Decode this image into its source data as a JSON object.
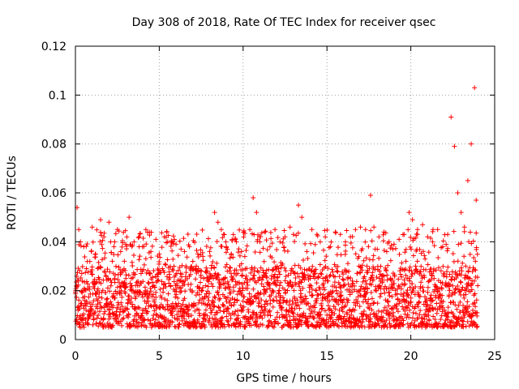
{
  "chart_data": {
    "type": "scatter",
    "title": "Day 308 of 2018, Rate Of TEC Index for receiver qsec",
    "xlabel": "GPS time / hours",
    "ylabel": "ROTI / TECUs",
    "xlim": [
      0,
      25
    ],
    "ylim": [
      0,
      0.12
    ],
    "xticks": [
      0,
      5,
      10,
      15,
      20,
      25
    ],
    "xtick_labels": [
      "0",
      "5",
      "10",
      "15",
      "20",
      "25"
    ],
    "yticks": [
      0,
      0.02,
      0.04,
      0.06,
      0.08,
      0.1,
      0.12
    ],
    "ytick_labels": [
      "0",
      "0.02",
      "0.04",
      "0.06",
      "0.08",
      "0.1",
      "0.12"
    ],
    "grid": true,
    "marker": "+",
    "color": "#ff0000",
    "series": [
      {
        "name": "ROTI",
        "x_range": [
          0,
          24
        ],
        "typical_range": [
          0.005,
          0.03
        ],
        "x": [
          0.1,
          0.2,
          0.3,
          0.5,
          1.0,
          1.2,
          1.5,
          1.7,
          2.0,
          2.1,
          2.3,
          2.5,
          2.7,
          3.0,
          3.2,
          3.5,
          3.8,
          4.0,
          4.2,
          4.5,
          4.8,
          5.0,
          5.3,
          5.5,
          5.8,
          6.0,
          6.3,
          6.5,
          6.8,
          7.0,
          7.3,
          7.6,
          8.0,
          8.3,
          8.5,
          8.7,
          9.0,
          9.3,
          9.6,
          9.9,
          10.1,
          10.4,
          10.6,
          10.8,
          11.0,
          11.3,
          11.6,
          11.9,
          12.2,
          12.5,
          12.8,
          13.0,
          13.3,
          13.5,
          13.8,
          14.1,
          14.4,
          14.6,
          14.9,
          15.2,
          15.5,
          15.8,
          16.1,
          16.4,
          16.7,
          17.0,
          17.3,
          17.6,
          17.8,
          18.1,
          18.4,
          18.7,
          19.0,
          19.3,
          19.6,
          19.9,
          20.1,
          20.4,
          20.7,
          21.0,
          21.3,
          21.6,
          21.9,
          22.2,
          22.4,
          22.6,
          22.8,
          23.0,
          23.2,
          23.4,
          23.6,
          23.8,
          23.9
        ],
        "y": [
          0.054,
          0.045,
          0.04,
          0.038,
          0.046,
          0.035,
          0.049,
          0.042,
          0.048,
          0.04,
          0.038,
          0.045,
          0.036,
          0.039,
          0.05,
          0.04,
          0.042,
          0.038,
          0.045,
          0.036,
          0.041,
          0.035,
          0.042,
          0.04,
          0.04,
          0.039,
          0.037,
          0.036,
          0.038,
          0.032,
          0.035,
          0.034,
          0.036,
          0.052,
          0.048,
          0.045,
          0.038,
          0.035,
          0.04,
          0.036,
          0.034,
          0.045,
          0.058,
          0.052,
          0.04,
          0.044,
          0.038,
          0.045,
          0.04,
          0.042,
          0.046,
          0.043,
          0.055,
          0.05,
          0.036,
          0.045,
          0.043,
          0.04,
          0.042,
          0.038,
          0.044,
          0.043,
          0.04,
          0.042,
          0.045,
          0.046,
          0.045,
          0.059,
          0.046,
          0.042,
          0.044,
          0.04,
          0.039,
          0.041,
          0.043,
          0.052,
          0.049,
          0.045,
          0.047,
          0.042,
          0.04,
          0.045,
          0.038,
          0.043,
          0.091,
          0.079,
          0.06,
          0.052,
          0.046,
          0.065,
          0.08,
          0.103,
          0.057
        ]
      }
    ]
  }
}
